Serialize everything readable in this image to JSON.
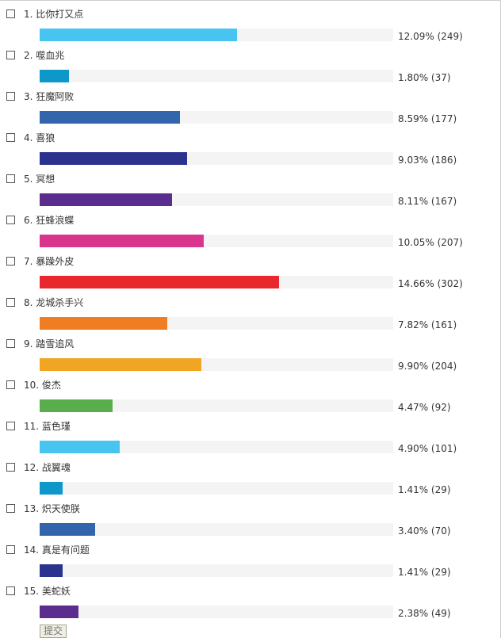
{
  "poll": {
    "options": [
      {
        "label": "1.  比你打又点",
        "result": "12.09% (249)",
        "value": 12.09,
        "votes": 249,
        "color": "#47c4f0"
      },
      {
        "label": "2.  噬血兆",
        "result": "1.80% (37)",
        "value": 1.8,
        "votes": 37,
        "color": "#0d98c9"
      },
      {
        "label": "3.  狂魔阿败",
        "result": "8.59% (177)",
        "value": 8.59,
        "votes": 177,
        "color": "#3365ad"
      },
      {
        "label": "4.  喜狼",
        "result": "9.03% (186)",
        "value": 9.03,
        "votes": 186,
        "color": "#2c338f"
      },
      {
        "label": "5.  冥想",
        "result": "8.11% (167)",
        "value": 8.11,
        "votes": 167,
        "color": "#5a2d8e"
      },
      {
        "label": "6.  狂蜂浪蝶",
        "result": "10.05% (207)",
        "value": 10.05,
        "votes": 207,
        "color": "#d9358c"
      },
      {
        "label": "7.  暴躁外皮",
        "result": "14.66% (302)",
        "value": 14.66,
        "votes": 302,
        "color": "#e8282c"
      },
      {
        "label": "8.  龙城杀手兴",
        "result": "7.82% (161)",
        "value": 7.82,
        "votes": 161,
        "color": "#f07d22"
      },
      {
        "label": "9.  踏雪追风",
        "result": "9.90% (204)",
        "value": 9.9,
        "votes": 204,
        "color": "#f0a623"
      },
      {
        "label": "10.  俊杰",
        "result": "4.47% (92)",
        "value": 4.47,
        "votes": 92,
        "color": "#5aad4c"
      },
      {
        "label": "11.  蓝色瑾",
        "result": "4.90% (101)",
        "value": 4.9,
        "votes": 101,
        "color": "#47c4f0"
      },
      {
        "label": "12.  战翼魂",
        "result": "1.41% (29)",
        "value": 1.41,
        "votes": 29,
        "color": "#0d98c9"
      },
      {
        "label": "13.  炽天使朕",
        "result": "3.40% (70)",
        "value": 3.4,
        "votes": 70,
        "color": "#3365ad"
      },
      {
        "label": "14.  真是有问题",
        "result": "1.41% (29)",
        "value": 1.41,
        "votes": 29,
        "color": "#2c338f"
      },
      {
        "label": "15.  美蛇妖",
        "result": "2.38% (49)",
        "value": 2.38,
        "votes": 49,
        "color": "#5a2d8e"
      }
    ],
    "submit_label": "提交"
  }
}
